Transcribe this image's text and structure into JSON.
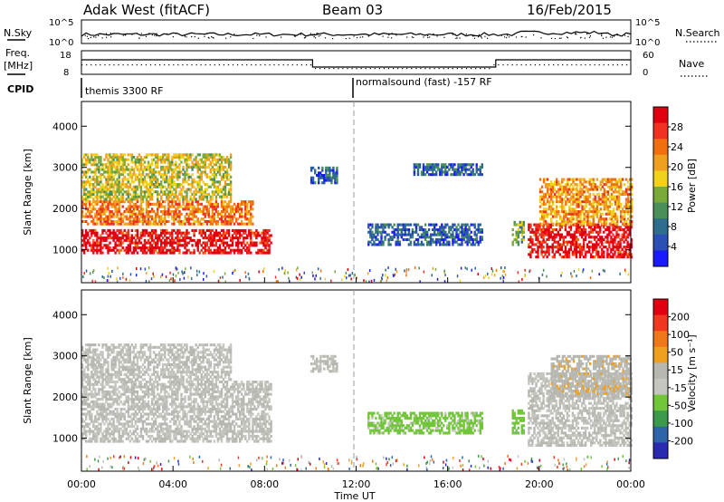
{
  "header": {
    "title": "Adak West (fitACF)",
    "beam": "Beam 03",
    "date": "16/Feb/2015"
  },
  "top_panels": {
    "nsky_label": "N.Sky",
    "nsky_ticks": [
      "10^5",
      "10^0"
    ],
    "nsearch_label": "N.Search",
    "nsearch_ticks": [
      "10^5",
      "10^0"
    ],
    "freq_label": "Freq.",
    "freq_unit": "[MHz]",
    "freq_ticks": [
      "18",
      "8"
    ],
    "nave_label": "Nave",
    "nave_ticks": [
      "60",
      "0"
    ],
    "cpid_label": "CPID",
    "cpid_entries": [
      "themis 3300 RF",
      "normalsound (fast) -157 RF"
    ]
  },
  "colors": {
    "power_scale": [
      "#1a1aff",
      "#2b4fb5",
      "#2e6e8c",
      "#4a8f5a",
      "#7aaa3a",
      "#f0d21a",
      "#f0a020",
      "#f07010",
      "#f03020",
      "#e00010"
    ],
    "velocity_scale": [
      "#2a2ab0",
      "#2e64a8",
      "#3c9a4c",
      "#72c63a",
      "#c6c6c0",
      "#b8b8b2",
      "#f0a020",
      "#f07818",
      "#f03820",
      "#e00010"
    ]
  },
  "chart_data": [
    {
      "type": "heatmap",
      "name": "power",
      "ylabel": "Slant Range [km]",
      "xlabel": "Time UT",
      "x_ticks": [
        "00:00",
        "04:00",
        "08:00",
        "12:00",
        "16:00",
        "20:00",
        "00:00"
      ],
      "y_ticks": [
        "1000",
        "2000",
        "3000",
        "4000"
      ],
      "ylim": [
        200,
        4600
      ],
      "colorbar_label": "Power [dB]",
      "colorbar_ticks": [
        "28",
        "24",
        "20",
        "16",
        "12",
        "8",
        "4"
      ],
      "colorbar_range": [
        0,
        30
      ],
      "regions": [
        {
          "t0": 0.0,
          "t1": 8.3,
          "r0": 900,
          "r1": 1500,
          "level": 28
        },
        {
          "t0": 0.0,
          "t1": 7.5,
          "r0": 1600,
          "r1": 2200,
          "level": 22
        },
        {
          "t0": 0.0,
          "t1": 6.5,
          "r0": 2200,
          "r1": 3300,
          "level": 16
        },
        {
          "t0": 10.0,
          "t1": 11.2,
          "r0": 2600,
          "r1": 3000,
          "level": 6
        },
        {
          "t0": 12.5,
          "t1": 17.5,
          "r0": 1100,
          "r1": 1600,
          "level": 6
        },
        {
          "t0": 14.5,
          "t1": 17.5,
          "r0": 2800,
          "r1": 3100,
          "level": 6
        },
        {
          "t0": 18.8,
          "t1": 19.3,
          "r0": 1100,
          "r1": 1700,
          "level": 12
        },
        {
          "t0": 19.5,
          "t1": 24.0,
          "r0": 800,
          "r1": 1600,
          "level": 28
        },
        {
          "t0": 20.0,
          "t1": 24.0,
          "r0": 1600,
          "r1": 2700,
          "level": 20
        }
      ]
    },
    {
      "type": "heatmap",
      "name": "velocity",
      "ylabel": "Slant Range [km]",
      "xlabel": "Time UT",
      "x_ticks": [
        "00:00",
        "04:00",
        "08:00",
        "12:00",
        "16:00",
        "20:00",
        "00:00"
      ],
      "y_ticks": [
        "1000",
        "2000",
        "3000",
        "4000"
      ],
      "ylim": [
        200,
        4600
      ],
      "colorbar_label": "Velocity [m s⁻¹]",
      "colorbar_ticks": [
        "200",
        "100",
        "50",
        "15",
        "-15",
        "-50",
        "-100",
        "-200"
      ],
      "colorbar_range": [
        -250,
        250
      ],
      "regions": [
        {
          "t0": 0.0,
          "t1": 8.3,
          "r0": 900,
          "r1": 2400,
          "level": 0
        },
        {
          "t0": 0.0,
          "t1": 6.5,
          "r0": 2400,
          "r1": 3300,
          "level": 0
        },
        {
          "t0": 10.0,
          "t1": 11.2,
          "r0": 2600,
          "r1": 3000,
          "level": 0
        },
        {
          "t0": 12.5,
          "t1": 17.5,
          "r0": 1100,
          "r1": 1600,
          "level": -60
        },
        {
          "t0": 18.8,
          "t1": 19.3,
          "r0": 1100,
          "r1": 1700,
          "level": -80
        },
        {
          "t0": 19.5,
          "t1": 24.0,
          "r0": 800,
          "r1": 2600,
          "level": 0
        },
        {
          "t0": 20.5,
          "t1": 24.0,
          "r0": 2000,
          "r1": 3000,
          "level": 40
        }
      ]
    }
  ]
}
